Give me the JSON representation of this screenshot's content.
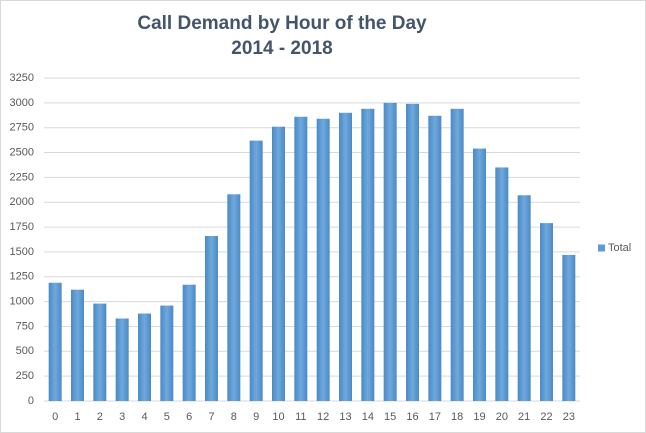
{
  "chart_data": {
    "type": "bar",
    "title": "Call Demand by Hour of the Day",
    "subtitle": "2014 - 2018",
    "categories": [
      "0",
      "1",
      "2",
      "3",
      "4",
      "5",
      "6",
      "7",
      "8",
      "9",
      "10",
      "11",
      "12",
      "13",
      "14",
      "15",
      "16",
      "17",
      "18",
      "19",
      "20",
      "21",
      "22",
      "23"
    ],
    "series": [
      {
        "name": "Total",
        "color": "#5b9bd5",
        "values": [
          1190,
          1120,
          980,
          830,
          880,
          960,
          1170,
          1660,
          2080,
          2620,
          2760,
          2860,
          2840,
          2900,
          2940,
          3000,
          2990,
          2870,
          2940,
          2540,
          2350,
          2070,
          1790,
          1470
        ]
      }
    ],
    "ylim": [
      0,
      3250
    ],
    "yticks": [
      0,
      250,
      500,
      750,
      1000,
      1250,
      1500,
      1750,
      2000,
      2250,
      2500,
      2750,
      3000,
      3250
    ],
    "grid": true,
    "legend": "right"
  }
}
